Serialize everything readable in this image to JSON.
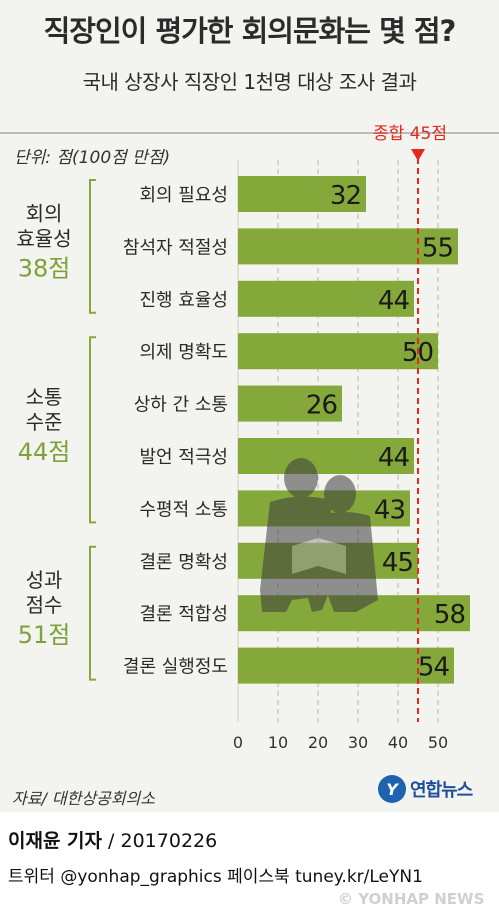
{
  "header": {
    "title": "직장인이 평가한 회의문화는 몇 점?",
    "subtitle": "국내 상장사 직장인 1천명 대상 조사 결과",
    "unit": "단위: 점(100점 만점)"
  },
  "chart_data": {
    "type": "bar",
    "orientation": "horizontal",
    "categories": [
      "회의 필요성",
      "참석자 적절성",
      "진행 효율성",
      "의제 명확도",
      "상하 간 소통",
      "발언 적극성",
      "수평적 소통",
      "결론 명확성",
      "결론 적합성",
      "결론 실행정도"
    ],
    "values": [
      32,
      55,
      44,
      50,
      26,
      44,
      43,
      45,
      58,
      54
    ],
    "xticks": [
      0,
      10,
      20,
      30,
      40,
      50
    ],
    "xlim": [
      0,
      60
    ],
    "reference_line": {
      "value": 45,
      "label": "종합 45점",
      "color": "#e5281b"
    },
    "groups": [
      {
        "line1": "회의",
        "line2": "효율성",
        "score": "38점",
        "start": 0,
        "end": 2
      },
      {
        "line1": "소통",
        "line2": "수준",
        "score": "44점",
        "start": 3,
        "end": 6
      },
      {
        "line1": "성과",
        "line2": "점수",
        "score": "51점",
        "start": 7,
        "end": 9
      }
    ],
    "colors": {
      "bar": "#84a93a",
      "group_score": "#7ea23a",
      "bracket": "#84a93a",
      "reference": "#e5281b",
      "grid": "#b5b5b5"
    }
  },
  "footer": {
    "source": "자료/ 대한상공회의소",
    "logo_mark": "Y",
    "logo_text": "연합뉴스",
    "byline_name": "이재윤 기자",
    "byline_rest": " / 20170226",
    "social": "트위터 @yonhap_graphics  페이스북 tuney.kr/LeYN1",
    "watermark": "© YONHAP NEWS"
  }
}
